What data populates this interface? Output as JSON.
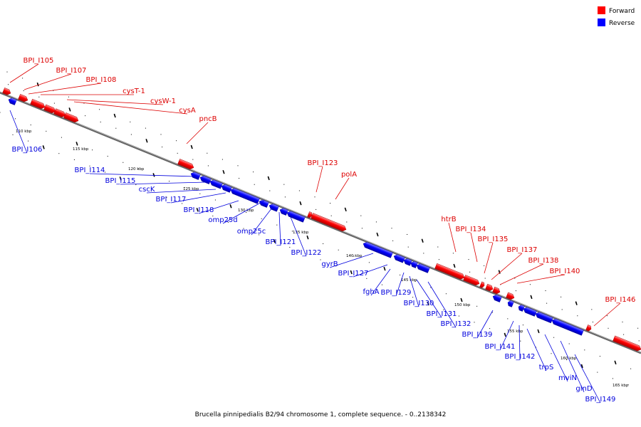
{
  "caption": "Brucella pinnipedialis B2/94 chromosome 1, complete sequence. - 0..2138342",
  "legend": [
    {
      "label": "Forward",
      "color": "#ff0000"
    },
    {
      "label": "Reverse",
      "color": "#0000ff"
    }
  ],
  "colors": {
    "forward": "#ff0000",
    "reverse": "#0000ff",
    "backbone": "#808080"
  },
  "kbp_labels": [
    "110 kbp",
    "115 kbp",
    "120 kbp",
    "125 kbp",
    "130 kbp",
    "135 kbp",
    "140 kbp",
    "145 kbp",
    "150 kbp",
    "155 kbp",
    "160 kbp",
    "165 kbp"
  ],
  "forward_labels": [
    "BPI_I105",
    "BPI_I107",
    "BPI_I108",
    "cysT-1",
    "cysW-1",
    "cysA",
    "pncB",
    "BPI_I123",
    "polA",
    "htrB",
    "BPI_I134",
    "BPI_I135",
    "BPI_I137",
    "BPI_I138",
    "BPI_I140",
    "BPI_I146"
  ],
  "reverse_labels": [
    "BPI_I106",
    "BPI_I114",
    "BPI_I115",
    "cscK",
    "BPI_I117",
    "BPI_I118",
    "omp25d",
    "omp25c",
    "BPI_I121",
    "BPI_I122",
    "gyrB",
    "BPI_I127",
    "fghA",
    "BPI_I129",
    "BPI_I130",
    "BPI_I131",
    "BPI_I132",
    "BPI_I139",
    "BPI_I141",
    "BPI_I142",
    "trpS",
    "mviN",
    "glnD",
    "BPI_I149"
  ]
}
